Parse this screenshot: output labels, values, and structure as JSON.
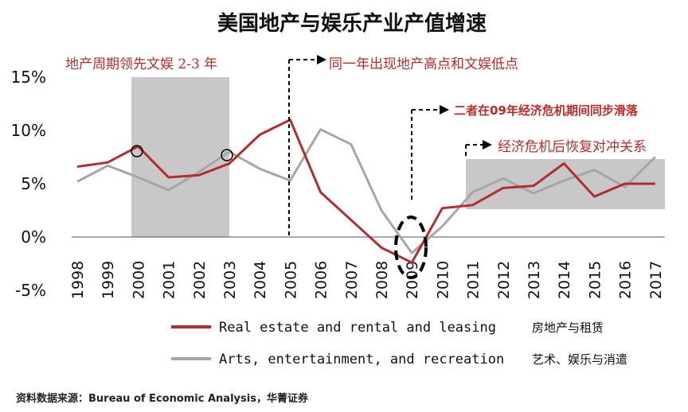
{
  "chart_data": {
    "type": "line",
    "title": "美国地产与娱乐产业产值增速",
    "categories": [
      "1998",
      "1999",
      "2000",
      "2001",
      "2002",
      "2003",
      "2004",
      "2005",
      "2006",
      "2007",
      "2008",
      "2009",
      "2010",
      "2011",
      "2012",
      "2013",
      "2014",
      "2015",
      "2016",
      "2017"
    ],
    "yticks": [
      "15%",
      "10%",
      "5%",
      "0%",
      "-5%"
    ],
    "ytick_values": [
      15,
      10,
      5,
      0,
      -5
    ],
    "ylim": [
      -5,
      15
    ],
    "series": [
      {
        "name_en": "Real estate and rental and leasing",
        "name_zh": "房地产与租赁",
        "color": "#b32d2e",
        "values": [
          6.6,
          7.0,
          8.5,
          5.6,
          5.8,
          6.9,
          9.6,
          11.0,
          4.2,
          1.6,
          -1.0,
          -2.4,
          2.7,
          3.0,
          4.6,
          4.8,
          6.9,
          3.8,
          5.0,
          5.0
        ]
      },
      {
        "name_en": "Arts, entertainment, and recreation",
        "name_zh": "艺术、娱乐与消遣",
        "color": "#a6a6a6",
        "values": [
          5.2,
          6.7,
          5.6,
          4.4,
          6.1,
          8.0,
          6.4,
          5.3,
          10.1,
          8.7,
          2.5,
          -1.5,
          1.0,
          4.2,
          5.5,
          4.1,
          5.3,
          6.3,
          4.7,
          7.5
        ]
      }
    ],
    "annotations": {
      "a1": "地产周期领先文娱 2-3 年",
      "a2": "同一年出现地产高点和文娱低点",
      "a3": "二者在09年经济危机期间同步滑落",
      "a4": "经济危机后恢复对冲关系"
    },
    "source": "资料数据来源：Bureau of Economic Analysis，华菁证券",
    "colors": {
      "shade": "#c8c8c8",
      "annotation": "#c0292b"
    }
  }
}
